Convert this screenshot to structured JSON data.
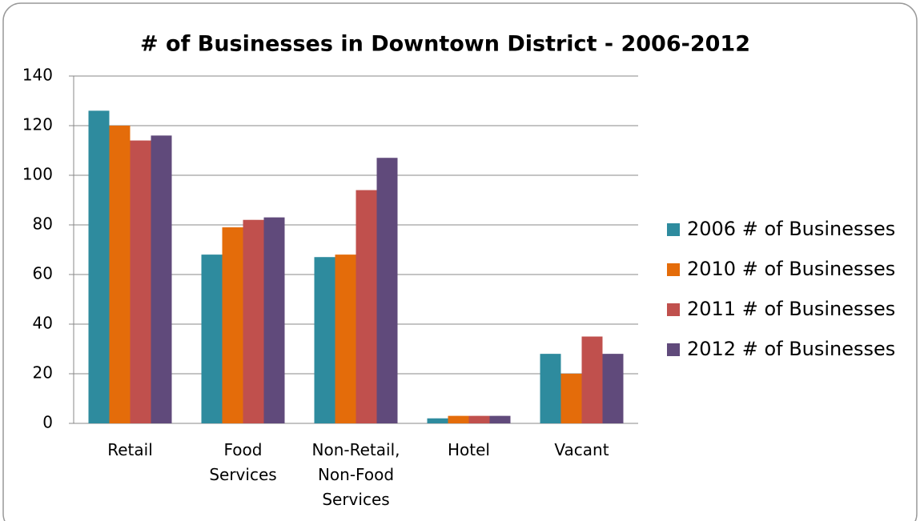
{
  "chart_data": {
    "type": "bar",
    "title": "# of Businesses in Downtown District - 2006-2012",
    "categories": [
      "Retail",
      "Food Services",
      "Non-Retail, Non-Food Services",
      "Hotel",
      "Vacant"
    ],
    "series": [
      {
        "name": "2006 # of Businesses",
        "color": "#2e8b9e",
        "values": [
          126,
          68,
          67,
          2,
          28
        ]
      },
      {
        "name": "2010 # of Businesses",
        "color": "#e46c0a",
        "values": [
          120,
          79,
          68,
          3,
          20
        ]
      },
      {
        "name": "2011 # of Businesses",
        "color": "#c0504d",
        "values": [
          114,
          82,
          94,
          3,
          35
        ]
      },
      {
        "name": "2012 # of Businesses",
        "color": "#604a7b",
        "values": [
          116,
          83,
          107,
          3,
          28
        ]
      }
    ],
    "ylim": [
      0,
      140
    ],
    "yticks": [
      0,
      20,
      40,
      60,
      80,
      100,
      120,
      140
    ],
    "grid": true,
    "legend": "right"
  }
}
